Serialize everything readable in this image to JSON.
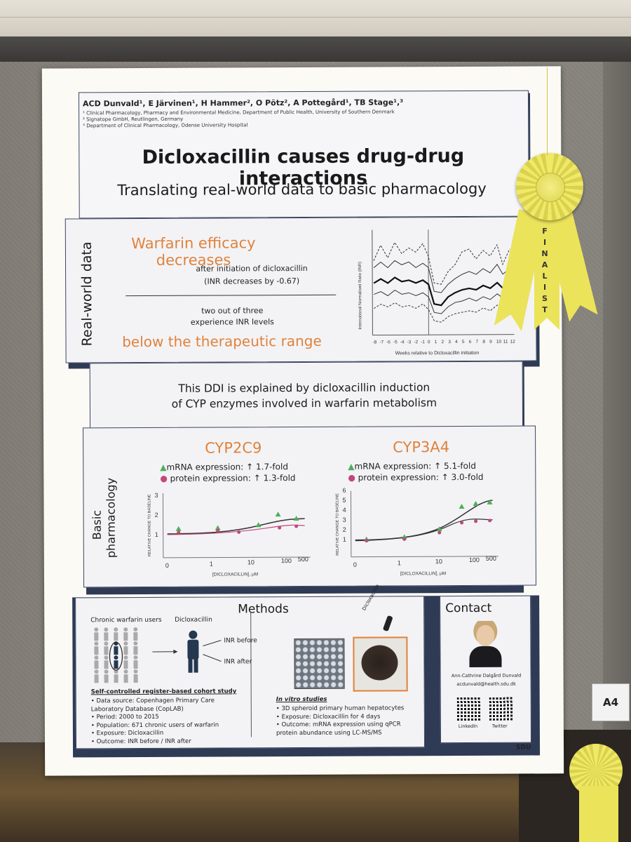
{
  "poster": {
    "authors": "ACD Dunvald¹, E Järvinen¹, H Hammer², O Pötz², A Pottegård¹, TB Stage¹,³",
    "affiliations": [
      "¹ Clinical Pharmacology, Pharmacy and Environmental Medicine, Department of Public Health, University of Southern Denmark",
      "² Signatope GmbH, Reutlingen, Germany",
      "³ Department of Clinical Pharmacology, Odense University Hospital"
    ],
    "title": "Dicloxacillin causes drug-drug interactions",
    "subtitle": "Translating real-world data to basic pharmacology",
    "real_world": {
      "section_label": "Real-world data",
      "headline": "Warfarin efficacy decreases",
      "line1": "after initiation of dicloxacillin",
      "line2": "(INR decreases by -0.67)",
      "line3": "two out of three",
      "line4": "experience INR levels",
      "bottom": "below the therapeutic range",
      "chart_ylabel": "International Normalised Ratio (INR)",
      "chart_xlabel": "Weeks relative to Dicloxacillin initiation",
      "chart_xticks": [
        "-8",
        "-7",
        "-6",
        "-5",
        "-4",
        "-3",
        "-2",
        "-1",
        "0",
        "1",
        "2",
        "3",
        "4",
        "5",
        "6",
        "7",
        "8",
        "9",
        "10",
        "11",
        "12"
      ]
    },
    "ddi_statement_line1": "This DDI is explained by dicloxacillin induction",
    "ddi_statement_line2": "of CYP enzymes involved in warfarin metabolism",
    "basic": {
      "section_label_line1": "Basic",
      "section_label_line2": "pharmacology",
      "cyp2c9": {
        "title": "CYP2C9",
        "mrna": "mRNA expression: ↑ 1.7-fold",
        "protein": "protein expression: ↑ 1.3-fold",
        "yticks": [
          "1",
          "2",
          "3"
        ],
        "xticks": [
          "0",
          "1",
          "10",
          "100",
          "500"
        ]
      },
      "cyp3a4": {
        "title": "CYP3A4",
        "mrna": "mRNA expression: ↑ 5.1-fold",
        "protein": "protein expression: ↑ 3.0-fold",
        "yticks": [
          "1",
          "2",
          "3",
          "4",
          "5",
          "6"
        ],
        "xticks": [
          "0",
          "1",
          "10",
          "100",
          "500"
        ]
      },
      "ylabel": "RELATIVE CHANGE TO BASELINE",
      "xlabel": "[DICLOXACILLIN], μM"
    },
    "methods": {
      "title": "Methods",
      "chronic_users": "Chronic warfarin users",
      "dicloxacillin": "Dicloxacillin",
      "inr_before": "INR before",
      "inr_after": "INR after",
      "dropper_label": "Dicloxacillin",
      "study_title": "Self-controlled register-based cohort study",
      "study_bullets": [
        "Data source: Copenhagen Primary Care Laboratory Database (CopLAB)",
        "Period: 2000 to 2015",
        "Population: 671 chronic users of warfarin",
        "Exposure: Dicloxacillin",
        "Outcome: INR before / INR after"
      ],
      "vitro_title": "In vitro studies",
      "vitro_bullets": [
        "3D spheroid primary human hepatocytes",
        "Exposure: Dicloxacillin for 4 days",
        "Outcome: mRNA expression using qPCR protein abundance using LC-MS/MS"
      ]
    },
    "contact": {
      "title": "Contact",
      "name": "Ann-Cathrine Dalgård Dunvald",
      "email": "acdunvald@health.sdu.dk",
      "qr1_label": "LinkedIn",
      "qr2_label": "Twitter"
    },
    "logo": "SDU"
  },
  "ribbon": {
    "text": "FINALIST"
  },
  "board_tag": "A4"
}
